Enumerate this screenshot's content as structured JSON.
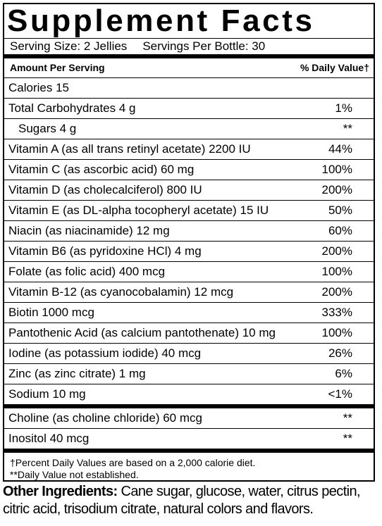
{
  "header": {
    "title": "Supplement Facts",
    "serving_size": "Serving Size: 2 Jellies",
    "servings_per": "Servings Per Bottle: 30"
  },
  "columns": {
    "amount": "Amount Per Serving",
    "daily_value": "% Daily Value†"
  },
  "sections": [
    {
      "rows": [
        {
          "label": "Calories 15"
        },
        {
          "label": "Total Carbohydrates 4 g",
          "dv": "1%"
        },
        {
          "label": "Sugars 4 g",
          "dv": "**",
          "indent": true
        },
        {
          "label": "Vitamin A (as all trans retinyl acetate) 2200 IU",
          "dv": "44%"
        },
        {
          "label": "Vitamin C (as ascorbic acid) 60 mg",
          "dv": "100%"
        },
        {
          "label": "Vitamin D (as cholecalciferol) 800 IU",
          "dv": "200%"
        },
        {
          "label": "Vitamin E (as DL-alpha tocopheryl acetate) 15 IU",
          "dv": "50%"
        },
        {
          "label": "Niacin (as niacinamide) 12 mg",
          "dv": "60%"
        },
        {
          "label": "Vitamin B6 (as pyridoxine HCl) 4 mg",
          "dv": "200%"
        },
        {
          "label": "Folate (as folic acid) 400 mcg",
          "dv": "100%"
        },
        {
          "label": "Vitamin B-12 (as cyanocobalamin) 12 mcg",
          "dv": "200%"
        },
        {
          "label": "Biotin 1000 mcg",
          "dv": "333%"
        },
        {
          "label": "Pantothenic Acid (as calcium pantothenate) 10 mg",
          "dv": "100%"
        },
        {
          "label": "Iodine (as potassium iodide) 40 mcg",
          "dv": "26%"
        },
        {
          "label": "Zinc (as zinc citrate) 1 mg",
          "dv": "6%"
        },
        {
          "label": "Sodium 10 mg",
          "dv": "<1%"
        }
      ]
    },
    {
      "rows": [
        {
          "label": "Choline (as choline chloride) 60 mcg",
          "dv": "**"
        },
        {
          "label": "Inositol 40 mcg",
          "dv": "**"
        }
      ]
    }
  ],
  "footnotes": [
    "†Percent Daily Values are based on a 2,000 calorie diet.",
    "**Daily Value not established."
  ],
  "other_ingredients": {
    "label": "Other Ingredients:",
    "text": "Cane sugar, glucose, water, citrus pectin, citric acid, trisodium citrate, natural colors and flavors."
  }
}
